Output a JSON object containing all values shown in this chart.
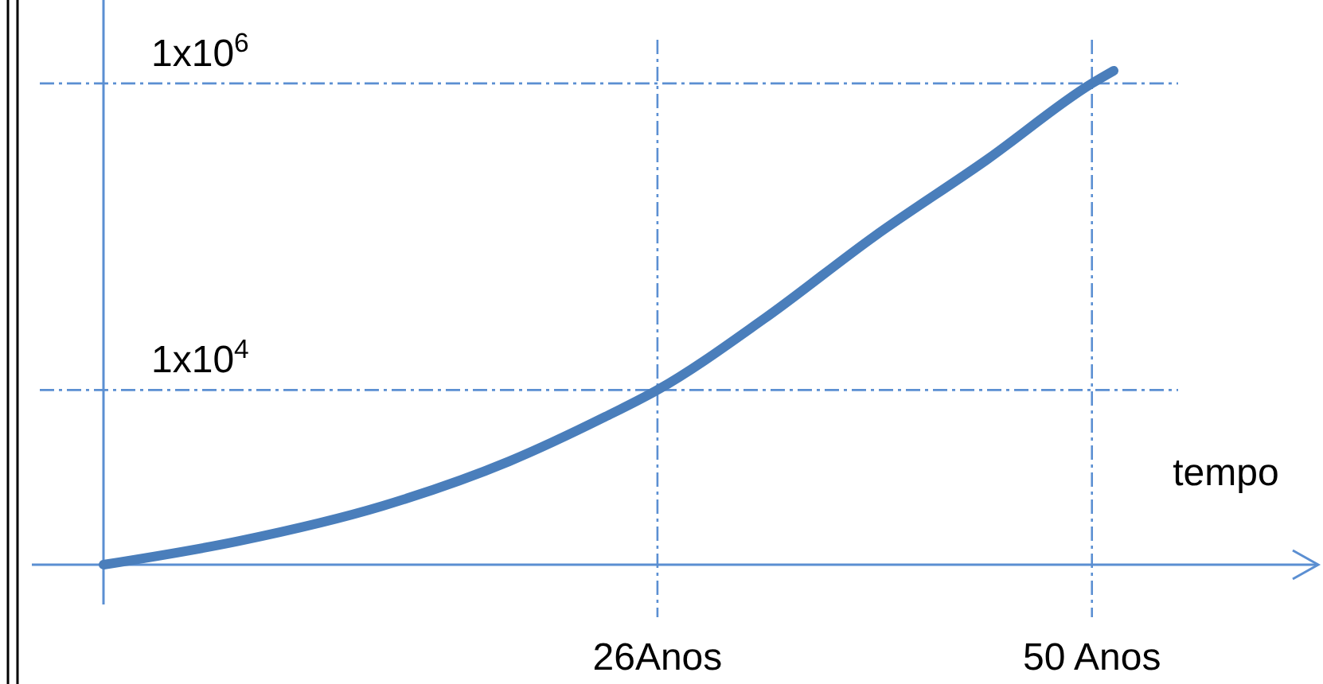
{
  "chart_data": {
    "type": "line",
    "xlabel": "tempo",
    "log": "y",
    "grid": true,
    "line_style": "solid",
    "x": [
      -4.6,
      2.9,
      10.8,
      17.8,
      23.1,
      26,
      31.9,
      38.0,
      44.2,
      50,
      51.2
    ],
    "series": [
      {
        "color": "#4a7ebb",
        "values": [
          725,
          1036,
          1750,
          3420,
          6670,
          10000,
          29200,
          101000,
          318000,
          1000000,
          1210000
        ]
      }
    ],
    "xlim": [
      -4.6,
      62.5
    ],
    "ylim": [
      725,
      3500000
    ],
    "xticks": [
      {
        "value": 26,
        "label": "26Anos"
      },
      {
        "value": 50,
        "label": "50 Anos"
      }
    ],
    "yticks": [
      {
        "value": 10000,
        "label": "1x10$^{4}$"
      },
      {
        "value": 1000000,
        "label": "1x10$^{6}$"
      }
    ]
  }
}
